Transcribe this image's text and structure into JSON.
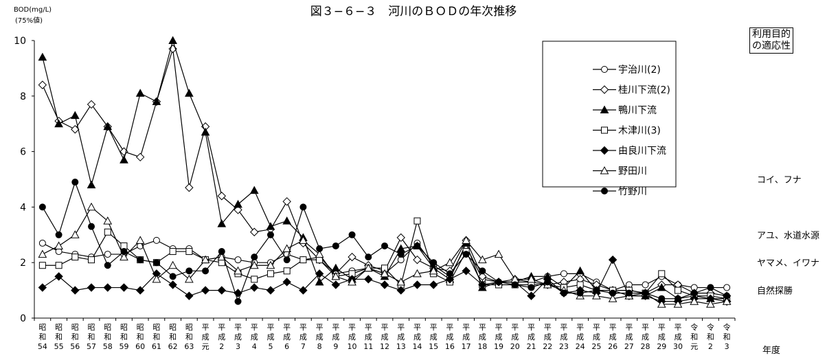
{
  "chart_data": {
    "type": "line",
    "title": "図３−６−３　河川のＢＯＤの年次推移",
    "ylabel_line1": "BOD(mg/L)",
    "ylabel_line2": "(75%値)",
    "xlabel": "年度",
    "ylim": [
      0,
      10
    ],
    "y_ticks": [
      "0",
      "2",
      "4",
      "6",
      "8",
      "10"
    ],
    "grid": false,
    "legend_position": "top-right",
    "categories": [
      [
        "昭",
        "和",
        "54"
      ],
      [
        "昭",
        "和",
        "55"
      ],
      [
        "昭",
        "和",
        "56"
      ],
      [
        "昭",
        "和",
        "57"
      ],
      [
        "昭",
        "和",
        "58"
      ],
      [
        "昭",
        "和",
        "59"
      ],
      [
        "昭",
        "和",
        "60"
      ],
      [
        "昭",
        "和",
        "61"
      ],
      [
        "昭",
        "和",
        "62"
      ],
      [
        "昭",
        "和",
        "63"
      ],
      [
        "平",
        "成",
        "元"
      ],
      [
        "平",
        "成",
        "2"
      ],
      [
        "平",
        "成",
        "3"
      ],
      [
        "平",
        "成",
        "4"
      ],
      [
        "平",
        "成",
        "5"
      ],
      [
        "平",
        "成",
        "6"
      ],
      [
        "平",
        "成",
        "7"
      ],
      [
        "平",
        "成",
        "8"
      ],
      [
        "平",
        "成",
        "9"
      ],
      [
        "平",
        "成",
        "10"
      ],
      [
        "平",
        "成",
        "11"
      ],
      [
        "平",
        "成",
        "12"
      ],
      [
        "平",
        "成",
        "13"
      ],
      [
        "平",
        "成",
        "14"
      ],
      [
        "平",
        "成",
        "15"
      ],
      [
        "平",
        "成",
        "16"
      ],
      [
        "平",
        "成",
        "17"
      ],
      [
        "平",
        "成",
        "18"
      ],
      [
        "平",
        "成",
        "19"
      ],
      [
        "平",
        "成",
        "20"
      ],
      [
        "平",
        "成",
        "21"
      ],
      [
        "平",
        "成",
        "22"
      ],
      [
        "平",
        "成",
        "23"
      ],
      [
        "平",
        "成",
        "24"
      ],
      [
        "平",
        "成",
        "25"
      ],
      [
        "平",
        "成",
        "26"
      ],
      [
        "平",
        "成",
        "27"
      ],
      [
        "平",
        "成",
        "28"
      ],
      [
        "平",
        "成",
        "29"
      ],
      [
        "平",
        "成",
        "30"
      ],
      [
        "令",
        "和",
        "元"
      ],
      [
        "令",
        "和",
        "2"
      ],
      [
        "令",
        "和",
        "3"
      ]
    ],
    "series": [
      {
        "name": "宇治川(2)",
        "marker": "circle-open",
        "values": [
          2.7,
          2.4,
          2.3,
          2.2,
          2.3,
          2.3,
          2.6,
          2.8,
          2.5,
          2.5,
          2.1,
          2.2,
          2.1,
          2.0,
          2.0,
          2.3,
          2.1,
          2.2,
          1.6,
          1.7,
          1.8,
          1.6,
          2.1,
          2.7,
          1.9,
          1.5,
          2.6,
          1.4,
          1.3,
          1.3,
          1.3,
          1.5,
          1.6,
          1.6,
          1.3,
          1.0,
          1.2,
          1.2,
          1.5,
          1.2,
          1.1,
          1.1,
          1.1
        ]
      },
      {
        "name": "桂川下流(2)",
        "marker": "diamond-open",
        "values": [
          8.4,
          7.1,
          6.8,
          7.7,
          6.9,
          6.0,
          5.8,
          7.8,
          9.7,
          4.7,
          6.9,
          4.4,
          3.9,
          3.1,
          3.2,
          4.2,
          2.7,
          2.1,
          1.6,
          2.2,
          1.9,
          1.7,
          2.9,
          2.1,
          1.8,
          1.7,
          2.8,
          1.5,
          1.3,
          1.4,
          1.3,
          1.2,
          1.3,
          1.4,
          1.2,
          1.0,
          1.0,
          0.9,
          1.2,
          1.2,
          0.9,
          0.9,
          0.8
        ]
      },
      {
        "name": "鴨川下流",
        "marker": "triangle-filled",
        "values": [
          9.4,
          7.0,
          7.3,
          4.8,
          6.9,
          5.7,
          8.1,
          7.8,
          10.0,
          8.1,
          6.7,
          3.4,
          4.1,
          4.6,
          3.3,
          3.5,
          2.9,
          1.3,
          1.8,
          1.4,
          1.8,
          1.5,
          2.5,
          2.6,
          1.8,
          1.4,
          2.7,
          1.1,
          1.3,
          1.3,
          1.5,
          1.5,
          1.1,
          1.7,
          1.0,
          1.0,
          0.8,
          0.8,
          1.1,
          0.7,
          0.8,
          0.7,
          0.7
        ]
      },
      {
        "name": "木津川(3)",
        "marker": "square-open",
        "values": [
          1.9,
          1.9,
          2.2,
          2.1,
          3.1,
          2.6,
          2.1,
          2.0,
          2.4,
          2.4,
          2.1,
          2.0,
          1.6,
          1.4,
          1.6,
          1.7,
          2.1,
          2.1,
          1.5,
          1.6,
          1.8,
          1.8,
          1.2,
          3.5,
          1.6,
          1.3,
          2.4,
          1.2,
          1.2,
          1.2,
          1.2,
          1.2,
          1.1,
          1.2,
          1.0,
          1.0,
          1.0,
          0.9,
          1.6,
          1.0,
          0.8,
          0.8,
          0.7
        ]
      },
      {
        "name": "由良川下流",
        "marker": "diamond-filled",
        "values": [
          1.1,
          1.5,
          1.0,
          1.1,
          1.1,
          1.1,
          1.0,
          1.6,
          1.2,
          0.8,
          1.0,
          1.0,
          0.9,
          1.1,
          1.0,
          1.3,
          1.0,
          1.6,
          1.2,
          1.4,
          1.4,
          1.2,
          1.0,
          1.2,
          1.2,
          1.4,
          1.7,
          1.2,
          1.3,
          1.3,
          0.8,
          1.4,
          0.9,
          1.0,
          0.9,
          2.1,
          0.8,
          0.8,
          0.6,
          0.6,
          0.7,
          0.7,
          0.6
        ]
      },
      {
        "name": "野田川",
        "marker": "triangle-open",
        "values": [
          2.3,
          2.6,
          3.0,
          4.0,
          3.5,
          2.2,
          2.8,
          1.4,
          1.9,
          1.4,
          2.1,
          2.2,
          1.7,
          1.9,
          1.9,
          2.5,
          2.8,
          2.3,
          1.5,
          1.3,
          1.8,
          1.6,
          1.3,
          1.6,
          1.7,
          2.0,
          2.8,
          2.1,
          2.3,
          1.4,
          1.4,
          1.2,
          1.0,
          0.8,
          0.8,
          0.7,
          0.8,
          0.9,
          0.5,
          0.5,
          0.6,
          0.5,
          0.6
        ]
      },
      {
        "name": "竹野川",
        "marker": "circle-filled",
        "values": [
          4.0,
          3.0,
          4.9,
          3.3,
          1.9,
          2.4,
          2.1,
          2.0,
          1.5,
          1.7,
          1.7,
          2.4,
          0.6,
          2.2,
          3.0,
          2.1,
          4.0,
          2.5,
          2.6,
          3.0,
          2.2,
          2.6,
          2.3,
          2.6,
          2.0,
          1.6,
          2.3,
          1.7,
          1.3,
          1.2,
          1.1,
          1.3,
          0.9,
          0.9,
          1.0,
          0.9,
          0.9,
          0.9,
          0.7,
          0.7,
          0.9,
          1.1,
          0.8
        ]
      }
    ],
    "suitability_title_line1": "利用目的",
    "suitability_title_line2": "の適応性",
    "suitability_levels": [
      {
        "label": "コイ、フナ",
        "value": 5
      },
      {
        "label": "アユ、水道水源",
        "value": 3
      },
      {
        "label": "ヤマメ、イワナ",
        "value": 2
      },
      {
        "label": "自然探勝",
        "value": 1
      }
    ]
  }
}
